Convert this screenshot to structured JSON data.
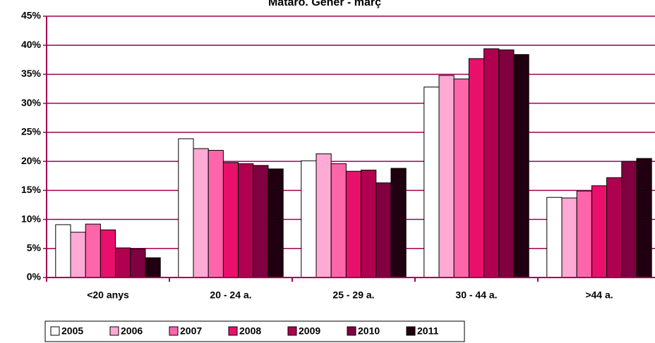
{
  "chart_data": {
    "type": "bar",
    "title": "Mataró. Gener - març",
    "categories": [
      "<20 anys",
      "20 - 24 a.",
      "25 - 29 a.",
      "30 - 44 a.",
      ">44 a."
    ],
    "series": [
      {
        "name": "2005",
        "color": "#ffffff",
        "values": [
          9.1,
          23.9,
          20.1,
          32.8,
          13.8
        ]
      },
      {
        "name": "2006",
        "color": "#ffaad4",
        "values": [
          7.8,
          22.2,
          21.3,
          34.8,
          13.7
        ]
      },
      {
        "name": "2007",
        "color": "#ff66aa",
        "values": [
          9.2,
          21.9,
          19.6,
          34.2,
          14.9
        ]
      },
      {
        "name": "2008",
        "color": "#e8106a",
        "values": [
          8.2,
          19.8,
          18.3,
          37.7,
          15.8
        ]
      },
      {
        "name": "2009",
        "color": "#b00050",
        "values": [
          5.1,
          19.6,
          18.5,
          39.4,
          17.2
        ]
      },
      {
        "name": "2010",
        "color": "#800040",
        "values": [
          4.9,
          19.3,
          16.3,
          39.2,
          20.0
        ]
      },
      {
        "name": "2011",
        "color": "#200010",
        "values": [
          3.4,
          18.7,
          18.8,
          38.4,
          20.5
        ]
      }
    ],
    "ylim": [
      0,
      45
    ],
    "yticks": [
      {
        "value": 0,
        "label": "0%"
      },
      {
        "value": 5,
        "label": "5%"
      },
      {
        "value": 10,
        "label": "10%"
      },
      {
        "value": 15,
        "label": "15%"
      },
      {
        "value": 20,
        "label": "20%"
      },
      {
        "value": 25,
        "label": "25%"
      },
      {
        "value": 30,
        "label": "30%"
      },
      {
        "value": 35,
        "label": "35%"
      },
      {
        "value": 40,
        "label": "40%"
      },
      {
        "value": 45,
        "label": "45%"
      }
    ],
    "grid": true
  }
}
